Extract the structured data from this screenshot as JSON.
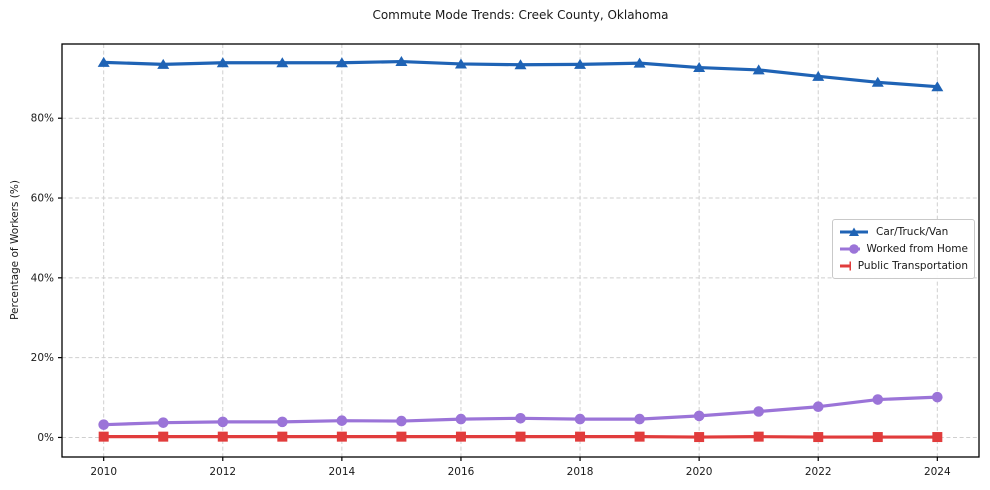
{
  "chart_data": {
    "type": "line",
    "title": "Commute Mode Trends: Creek County, Oklahoma",
    "xlabel": "",
    "ylabel": "Percentage of Workers (%)",
    "x": [
      2010,
      2011,
      2012,
      2013,
      2014,
      2015,
      2016,
      2017,
      2018,
      2019,
      2020,
      2021,
      2022,
      2023,
      2024
    ],
    "series": [
      {
        "name": "Car/Truck/Van",
        "color": "#1f63b5",
        "marker": "triangle",
        "values": [
          94.0,
          93.5,
          93.9,
          93.9,
          93.9,
          94.2,
          93.6,
          93.4,
          93.5,
          93.8,
          92.7,
          92.1,
          90.5,
          89.0,
          87.9
        ]
      },
      {
        "name": "Worked from Home",
        "color": "#9b74d8",
        "marker": "circle",
        "values": [
          3.2,
          3.7,
          3.9,
          3.9,
          4.2,
          4.1,
          4.6,
          4.8,
          4.6,
          4.6,
          5.4,
          6.5,
          7.7,
          9.5,
          10.1
        ]
      },
      {
        "name": "Public Transportation",
        "color": "#e13c3c",
        "marker": "square",
        "values": [
          0.2,
          0.2,
          0.2,
          0.2,
          0.2,
          0.2,
          0.2,
          0.2,
          0.2,
          0.2,
          0.1,
          0.2,
          0.1,
          0.1,
          0.1
        ]
      }
    ],
    "x_tick_labels": [
      "2010",
      "2012",
      "2014",
      "2016",
      "2018",
      "2020",
      "2022",
      "2024"
    ],
    "x_tick_values": [
      2010,
      2012,
      2014,
      2016,
      2018,
      2020,
      2022,
      2024
    ],
    "y_tick_labels": [
      "0%",
      "20%",
      "40%",
      "60%",
      "80%"
    ],
    "y_tick_values": [
      0,
      20,
      40,
      60,
      80
    ],
    "xlim": [
      2009.3,
      2024.7
    ],
    "ylim": [
      -4.9,
      98.6
    ],
    "grid": "dashed",
    "grid_color": "#cfcfcf",
    "axis_color": "#000000",
    "text_color": "#1a1a1a",
    "legend_position": "center-right"
  }
}
